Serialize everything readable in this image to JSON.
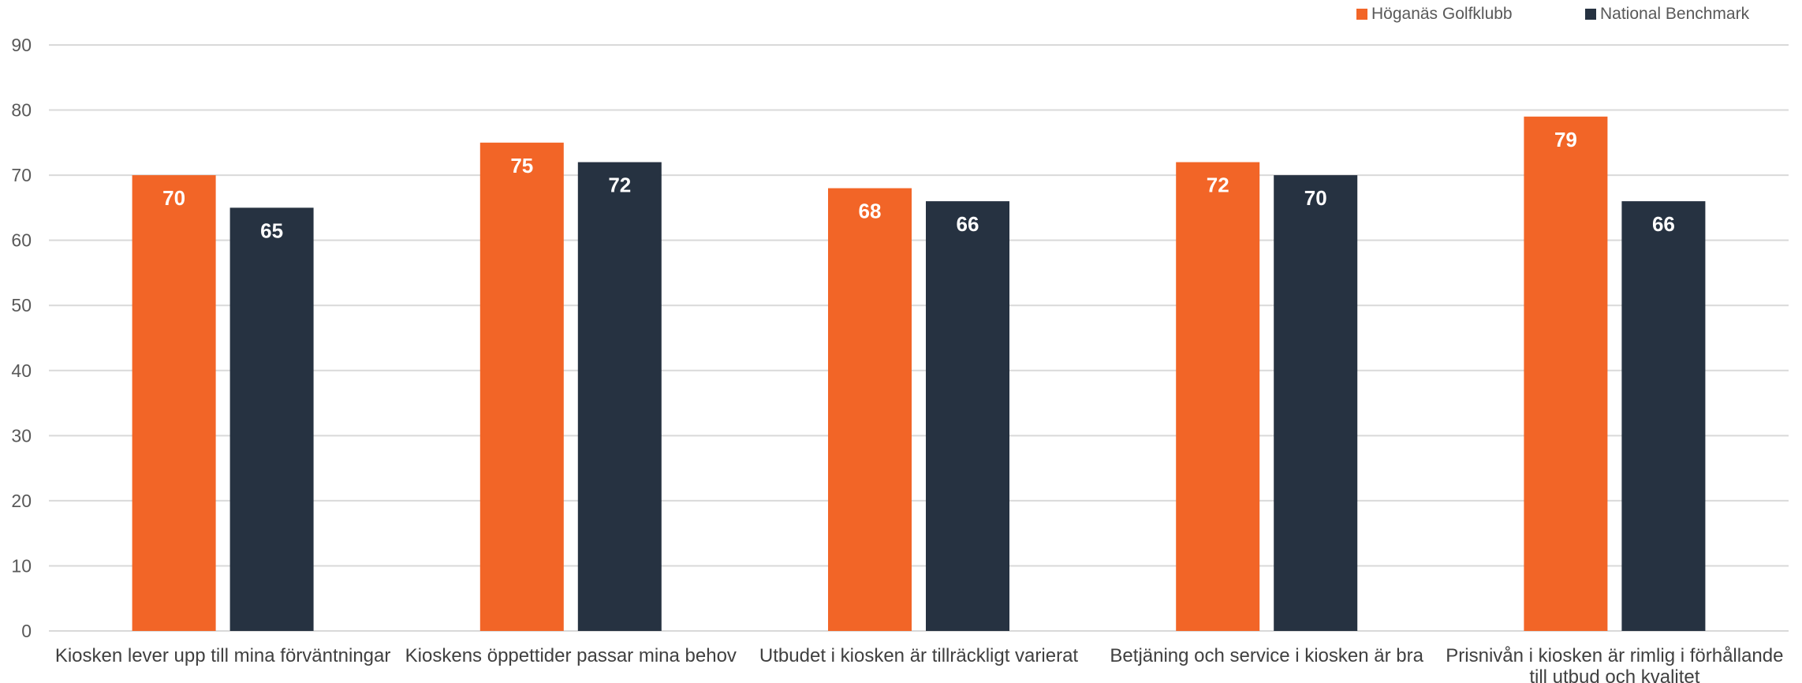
{
  "chart_data": {
    "type": "bar",
    "categories": [
      [
        "Kiosken lever upp till mina förväntningar"
      ],
      [
        "Kioskens öppettider passar mina behov"
      ],
      [
        "Utbudet i kiosken är tillräckligt varierat"
      ],
      [
        "Betjäning och service i kiosken är bra"
      ],
      [
        "Prisnivån i kiosken är rimlig i förhållande",
        "till utbud och kvalitet"
      ]
    ],
    "series": [
      {
        "name": "Höganäs Golfklubb",
        "color": "#F26527",
        "values": [
          70,
          75,
          68,
          72,
          79
        ]
      },
      {
        "name": "National Benchmark",
        "color": "#263241",
        "values": [
          65,
          72,
          66,
          70,
          66
        ]
      }
    ],
    "ylim": [
      0,
      90
    ],
    "yticks": [
      0,
      10,
      20,
      30,
      40,
      50,
      60,
      70,
      80,
      90
    ],
    "grid": true,
    "legend_position": "top-right",
    "title": "",
    "xlabel": "",
    "ylabel": ""
  },
  "colors": {
    "grid": "#D9D9D9",
    "axis_text": "#595959",
    "category_text": "#404040"
  }
}
